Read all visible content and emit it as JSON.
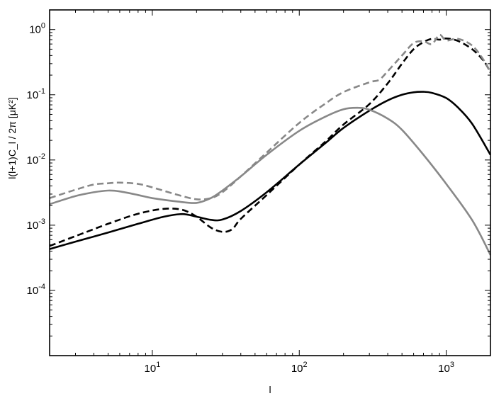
{
  "chart_data": {
    "type": "line",
    "xlabel": "l",
    "ylabel": "l(l+1)C_l / 2π [μK²]",
    "xscale": "log",
    "yscale": "log",
    "xlim": [
      2,
      2000
    ],
    "ylim": [
      1e-05,
      2
    ],
    "grid": false,
    "legend": "none",
    "x_ticks": [
      {
        "value": 10,
        "base": "10",
        "exp": "1"
      },
      {
        "value": 100,
        "base": "10",
        "exp": "2"
      },
      {
        "value": 1000,
        "base": "10",
        "exp": "3"
      }
    ],
    "y_ticks": [
      {
        "value": 1,
        "base": "10",
        "exp": "0"
      },
      {
        "value": 0.1,
        "base": "10",
        "exp": "-1"
      },
      {
        "value": 0.01,
        "base": "10",
        "exp": "-2"
      },
      {
        "value": 0.001,
        "base": "10",
        "exp": "-3"
      },
      {
        "value": 0.0001,
        "base": "10",
        "exp": "-4"
      }
    ],
    "series": [
      {
        "color": "#000000",
        "dash": "solid",
        "x": [
          2,
          3,
          5,
          8,
          12,
          16,
          20,
          25,
          30,
          40,
          60,
          100,
          150,
          200,
          300,
          400,
          500,
          600,
          700,
          800,
          1000,
          1200,
          1500,
          2000
        ],
        "y": [
          0.00043,
          0.00056,
          0.00077,
          0.00105,
          0.00135,
          0.00148,
          0.00135,
          0.00121,
          0.00122,
          0.00165,
          0.0032,
          0.0085,
          0.018,
          0.031,
          0.057,
          0.082,
          0.1,
          0.109,
          0.111,
          0.107,
          0.089,
          0.064,
          0.036,
          0.012
        ]
      },
      {
        "color": "#000000",
        "dash": "dashed",
        "x": [
          2,
          3,
          5,
          8,
          12,
          16,
          20,
          25,
          30,
          35,
          40,
          60,
          100,
          150,
          200,
          300,
          400,
          500,
          600,
          700,
          800,
          900,
          1000,
          1200,
          1500,
          1800,
          2000
        ],
        "y": [
          0.00048,
          0.00068,
          0.00105,
          0.0015,
          0.00178,
          0.00172,
          0.00135,
          0.00092,
          0.00079,
          0.00087,
          0.00125,
          0.0029,
          0.0085,
          0.019,
          0.035,
          0.072,
          0.15,
          0.3,
          0.5,
          0.64,
          0.72,
          0.7,
          0.73,
          0.67,
          0.5,
          0.33,
          0.22
        ]
      },
      {
        "color": "#888888",
        "dash": "solid",
        "x": [
          2,
          3,
          4,
          5,
          6,
          8,
          10,
          15,
          20,
          25,
          30,
          40,
          60,
          100,
          150,
          200,
          250,
          300,
          400,
          500,
          700,
          1000,
          1500,
          2000
        ],
        "y": [
          0.0021,
          0.0028,
          0.0032,
          0.0034,
          0.0033,
          0.0029,
          0.0026,
          0.0023,
          0.0022,
          0.0026,
          0.0034,
          0.0056,
          0.012,
          0.028,
          0.046,
          0.06,
          0.063,
          0.059,
          0.043,
          0.029,
          0.012,
          0.0043,
          0.0012,
          0.00035
        ]
      },
      {
        "color": "#888888",
        "dash": "dashed",
        "x": [
          2,
          3,
          4,
          5,
          6,
          8,
          10,
          15,
          20,
          25,
          30,
          40,
          60,
          100,
          150,
          200,
          300,
          350,
          400,
          500,
          600,
          700,
          800,
          900,
          1000,
          1200,
          1500,
          1800,
          2000
        ],
        "y": [
          0.0026,
          0.0035,
          0.0042,
          0.0044,
          0.0045,
          0.0043,
          0.0038,
          0.0029,
          0.0025,
          0.0026,
          0.0032,
          0.0056,
          0.013,
          0.037,
          0.073,
          0.11,
          0.155,
          0.17,
          0.23,
          0.4,
          0.62,
          0.66,
          0.6,
          0.83,
          0.68,
          0.72,
          0.57,
          0.34,
          0.22
        ]
      }
    ]
  }
}
